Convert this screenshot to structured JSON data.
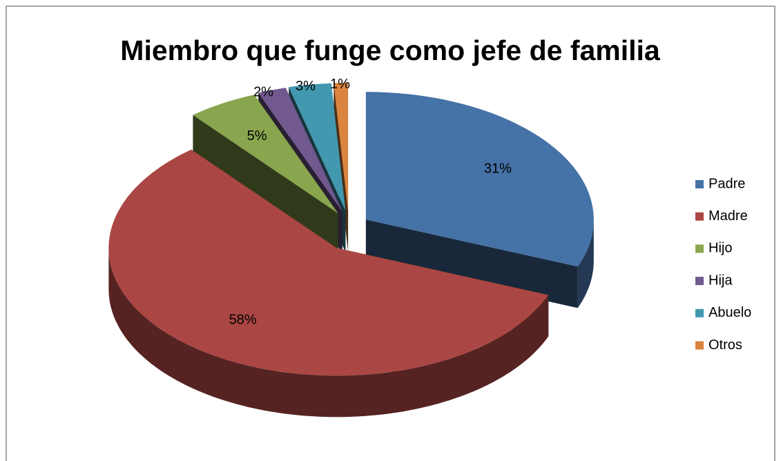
{
  "chart_data": {
    "type": "pie3d",
    "title": "Miembro que funge como jefe de familia",
    "categories": [
      "Padre",
      "Madre",
      "Hijo",
      "Hija",
      "Abuelo",
      "Otros"
    ],
    "values": [
      31,
      58,
      5,
      2,
      3,
      1
    ],
    "value_labels": [
      "31%",
      "58%",
      "5%",
      "2%",
      "3%",
      "1%"
    ],
    "colors": [
      "#4572a7",
      "#aa4643",
      "#89a54e",
      "#71588f",
      "#4198af",
      "#db843d"
    ],
    "legend": "right"
  }
}
